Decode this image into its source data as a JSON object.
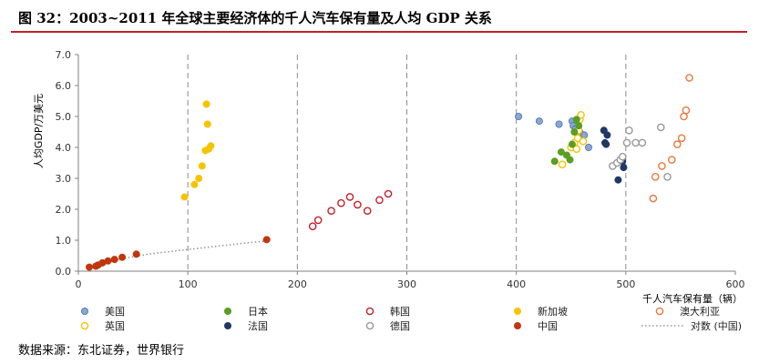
{
  "figure_title": "图 32：2003~2011 年全球主要经济体的千人汽车保有量及人均 GDP 关系",
  "source_note": "数据来源：东北证券，世界银行",
  "chart_data": {
    "type": "scatter",
    "title": "2003~2011 年全球主要经济体的千人汽车保有量及人均 GDP 关系",
    "xlabel": "千人汽车保有量（辆）",
    "ylabel": "人均GDP/万美元",
    "xlim": [
      0,
      600
    ],
    "ylim": [
      0,
      7
    ],
    "xticks": [
      "0",
      "100",
      "200",
      "300",
      "400",
      "500",
      "600"
    ],
    "yticks": [
      "0.0",
      "1.0",
      "2.0",
      "3.0",
      "4.0",
      "5.0",
      "6.0",
      "7.0"
    ],
    "grid": "dashed at x = 100, 200, 300, 400, 500",
    "legend_position": "bottom",
    "series": [
      {
        "name": "美国",
        "color": "#8aa6d4",
        "edge": "#4a6fad",
        "filled": true,
        "x": [
          402,
          421,
          439,
          451,
          452,
          454,
          458,
          462,
          466
        ],
        "y": [
          5.0,
          4.85,
          4.75,
          4.85,
          4.7,
          4.6,
          4.5,
          4.4,
          4.0
        ]
      },
      {
        "name": "英国",
        "color": "#ffffff",
        "edge": "#f5c400",
        "filled": false,
        "x": [
          442,
          450,
          453,
          455,
          456,
          457,
          458,
          459,
          461
        ],
        "y": [
          3.45,
          4.0,
          4.15,
          3.95,
          4.3,
          4.55,
          4.9,
          5.05,
          4.2
        ]
      },
      {
        "name": "日本",
        "color": "#5a9e22",
        "edge": "#5a9e22",
        "filled": true,
        "x": [
          435,
          441,
          446,
          449,
          451,
          453,
          455,
          457
        ],
        "y": [
          3.55,
          3.85,
          3.75,
          3.6,
          4.1,
          4.5,
          4.9,
          4.7
        ]
      },
      {
        "name": "法国",
        "color": "#1f3864",
        "edge": "#1f3864",
        "filled": true,
        "x": [
          480,
          481,
          482,
          483,
          493,
          496,
          497,
          498
        ],
        "y": [
          4.55,
          4.15,
          4.1,
          4.4,
          2.95,
          3.6,
          3.55,
          3.35
        ]
      },
      {
        "name": "韩国",
        "color": "#ffffff",
        "edge": "#c0202a",
        "filled": false,
        "x": [
          214,
          219,
          231,
          240,
          248,
          255,
          264,
          275,
          283
        ],
        "y": [
          1.45,
          1.65,
          1.95,
          2.2,
          2.4,
          2.15,
          1.95,
          2.3,
          2.5
        ]
      },
      {
        "name": "德国",
        "color": "#ffffff",
        "edge": "#999999",
        "filled": false,
        "x": [
          488,
          492,
          495,
          497,
          501,
          503,
          509,
          515,
          532,
          538
        ],
        "y": [
          3.4,
          3.5,
          3.6,
          3.7,
          4.15,
          4.55,
          4.15,
          4.15,
          4.65,
          3.05
        ]
      },
      {
        "name": "新加坡",
        "color": "#f5c400",
        "edge": "#f5c400",
        "filled": true,
        "x": [
          97,
          106,
          110,
          113,
          116,
          117,
          118,
          119,
          121
        ],
        "y": [
          2.4,
          2.8,
          3.0,
          3.4,
          3.9,
          5.4,
          4.75,
          3.95,
          4.05
        ]
      },
      {
        "name": "中国",
        "color": "#c0360e",
        "edge": "#c0360e",
        "filled": true,
        "x": [
          10,
          16,
          18,
          22,
          27,
          33,
          40,
          53,
          172
        ],
        "y": [
          0.13,
          0.16,
          0.2,
          0.27,
          0.33,
          0.38,
          0.45,
          0.55,
          1.02
        ]
      },
      {
        "name": "澳大利亚",
        "color": "#ffffff",
        "edge": "#e87a3c",
        "filled": false,
        "x": [
          525,
          527,
          533,
          542,
          547,
          551,
          553,
          555,
          558
        ],
        "y": [
          2.35,
          3.05,
          3.4,
          3.6,
          4.1,
          4.3,
          5.0,
          5.2,
          6.25
        ]
      }
    ],
    "trendline": {
      "name": "对数 (中国)",
      "style": "dotted",
      "color": "#999999",
      "x": [
        10,
        20,
        30,
        40,
        55,
        70,
        90,
        110,
        130,
        150,
        172
      ],
      "y": [
        0.13,
        0.22,
        0.32,
        0.4,
        0.5,
        0.58,
        0.66,
        0.74,
        0.82,
        0.9,
        0.98
      ]
    }
  }
}
